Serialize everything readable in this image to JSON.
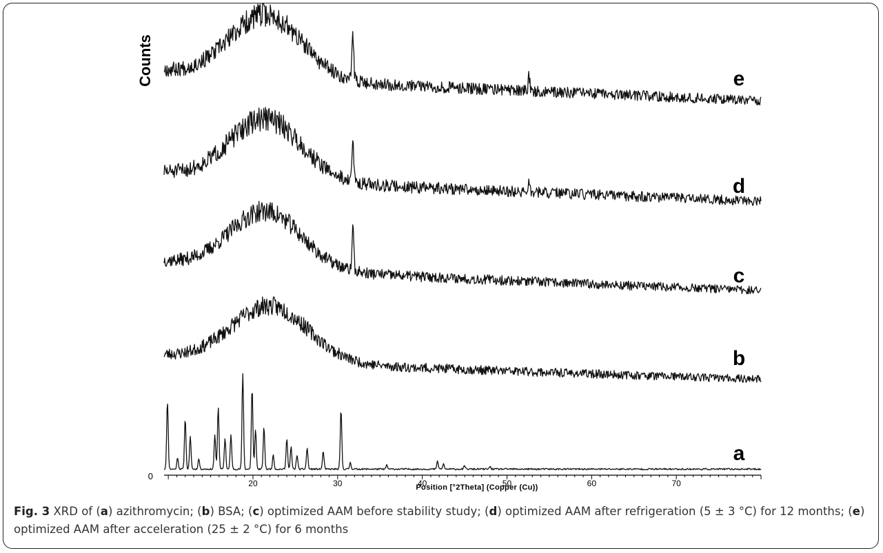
{
  "chart_data": {
    "type": "line",
    "ylabel": "Counts",
    "xlabel": "Position [°2Theta] (Copper (Cu))",
    "xlim": [
      9.5,
      80
    ],
    "x_ticks": [
      20,
      30,
      40,
      50,
      60,
      70
    ],
    "y_tick_labels": [
      "0"
    ],
    "grid": false,
    "legend": "none",
    "series": [
      {
        "name": "a",
        "shape": "sharp",
        "baseline": 0.3,
        "noise": 0.12,
        "peaks": [
          {
            "x": 9.9,
            "h": 10.5
          },
          {
            "x": 11.1,
            "h": 1.8
          },
          {
            "x": 12.0,
            "h": 7.8
          },
          {
            "x": 12.6,
            "h": 5.0
          },
          {
            "x": 13.6,
            "h": 1.6
          },
          {
            "x": 15.5,
            "h": 5.2
          },
          {
            "x": 15.9,
            "h": 9.6
          },
          {
            "x": 16.7,
            "h": 4.8
          },
          {
            "x": 17.4,
            "h": 5.3
          },
          {
            "x": 18.8,
            "h": 14.8
          },
          {
            "x": 19.9,
            "h": 12.5
          },
          {
            "x": 20.3,
            "h": 6.2
          },
          {
            "x": 21.3,
            "h": 6.5
          },
          {
            "x": 22.4,
            "h": 2.2
          },
          {
            "x": 24.0,
            "h": 4.8
          },
          {
            "x": 24.5,
            "h": 3.4
          },
          {
            "x": 25.2,
            "h": 2.2
          },
          {
            "x": 26.4,
            "h": 3.3
          },
          {
            "x": 28.3,
            "h": 2.8
          },
          {
            "x": 30.4,
            "h": 9.2
          },
          {
            "x": 31.5,
            "h": 1.0
          },
          {
            "x": 35.8,
            "h": 0.6
          },
          {
            "x": 41.8,
            "h": 1.2
          },
          {
            "x": 42.5,
            "h": 0.8
          },
          {
            "x": 45.0,
            "h": 0.5
          },
          {
            "x": 48.0,
            "h": 0.4
          }
        ]
      },
      {
        "name": "b",
        "shape": "amorphous",
        "hump_center": 22.0,
        "hump_width": 4.5,
        "hump_height": 6.0,
        "start_level": 3.0,
        "end_level": 0.4,
        "noise": 1.1,
        "peaks": []
      },
      {
        "name": "c",
        "shape": "amorphous",
        "hump_center": 21.5,
        "hump_width": 4.2,
        "hump_height": 6.2,
        "start_level": 3.5,
        "end_level": 0.3,
        "noise": 1.2,
        "peaks": [
          {
            "x": 31.8,
            "h": 5.0
          }
        ]
      },
      {
        "name": "d",
        "shape": "amorphous",
        "hump_center": 21.5,
        "hump_width": 4.2,
        "hump_height": 6.6,
        "start_level": 3.4,
        "end_level": 0.3,
        "noise": 1.4,
        "peaks": [
          {
            "x": 31.8,
            "h": 4.6
          },
          {
            "x": 52.6,
            "h": 1.0
          }
        ]
      },
      {
        "name": "e",
        "shape": "amorphous",
        "hump_center": 21.5,
        "hump_width": 4.2,
        "hump_height": 6.8,
        "start_level": 3.6,
        "end_level": 0.3,
        "noise": 1.4,
        "peaks": [
          {
            "x": 31.8,
            "h": 5.0
          },
          {
            "x": 52.6,
            "h": 1.6
          }
        ]
      }
    ]
  },
  "caption": {
    "label": "Fig. 3",
    "text": [
      {
        "t": " XRD of (",
        "b": false
      },
      {
        "t": "a",
        "b": true
      },
      {
        "t": ") azithromycin; (",
        "b": false
      },
      {
        "t": "b",
        "b": true
      },
      {
        "t": ") BSA; (",
        "b": false
      },
      {
        "t": "c",
        "b": true
      },
      {
        "t": ") optimized AAM before stability study; (",
        "b": false
      },
      {
        "t": "d",
        "b": true
      },
      {
        "t": ") optimized AAM after refrigeration (5 ± 3 °C) for 12 months; (",
        "b": false
      },
      {
        "t": "e",
        "b": true
      },
      {
        "t": ") optimized AAM after acceleration (25 ± 2 °C) for 6 months",
        "b": false
      }
    ]
  }
}
